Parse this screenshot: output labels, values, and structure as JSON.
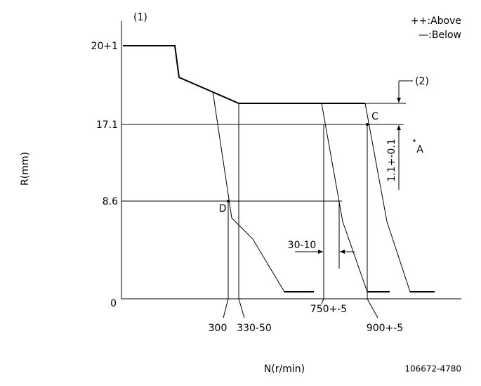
{
  "header": {
    "label1": "(1)",
    "legend_above": "++:Above",
    "legend_below": "—:Below"
  },
  "y_labels": [
    "20+1",
    "17.1",
    "8.6",
    "0"
  ],
  "y_axis_label": "R(mm)",
  "x_axis_label": "N(r/min)",
  "x_labels": [
    "300",
    "330-50",
    "750+-5",
    "900+-5"
  ],
  "points": {
    "c": "C",
    "a": "A",
    "d": "D"
  },
  "dimensions": {
    "label2": "(2)",
    "height": "1.1+-0.1",
    "speed_drop": "30-10"
  },
  "code": "106672-4780"
}
